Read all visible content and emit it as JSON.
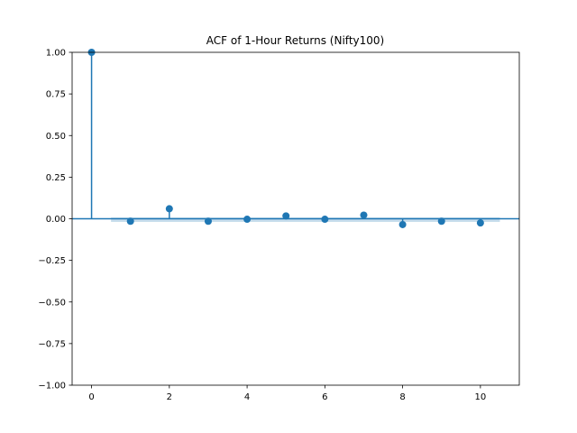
{
  "chart_data": {
    "type": "scatter",
    "title": "ACF of 1-Hour Returns (Nifty100)",
    "xlabel": "",
    "ylabel": "",
    "xlim": [
      -0.5,
      11
    ],
    "ylim": [
      -1.0,
      1.0
    ],
    "x_ticks": [
      0,
      2,
      4,
      6,
      8,
      10
    ],
    "x_tick_labels": [
      "0",
      "2",
      "4",
      "6",
      "8",
      "10"
    ],
    "y_ticks": [
      1.0,
      0.75,
      0.5,
      0.25,
      0.0,
      -0.25,
      -0.5,
      -0.75,
      -1.0
    ],
    "y_tick_labels": [
      "1.00",
      "0.75",
      "0.50",
      "0.25",
      "0.00",
      "−0.25",
      "−0.50",
      "−0.75",
      "−1.00"
    ],
    "grid": false,
    "series": [
      {
        "x": [
          0,
          1,
          2,
          3,
          4,
          5,
          6,
          7,
          8,
          9,
          10
        ],
        "values": [
          1.0,
          -0.015,
          0.06,
          -0.015,
          -0.003,
          0.017,
          -0.003,
          0.022,
          -0.035,
          -0.015,
          -0.025
        ]
      }
    ],
    "confidence_band": {
      "x_start": 0.5,
      "x_end": 10.5,
      "upper": 0.008,
      "lower": -0.008
    },
    "colors": {
      "marker": "#1f77b4",
      "band": "#1f77b4",
      "zero_line": "#1f77b4"
    }
  }
}
